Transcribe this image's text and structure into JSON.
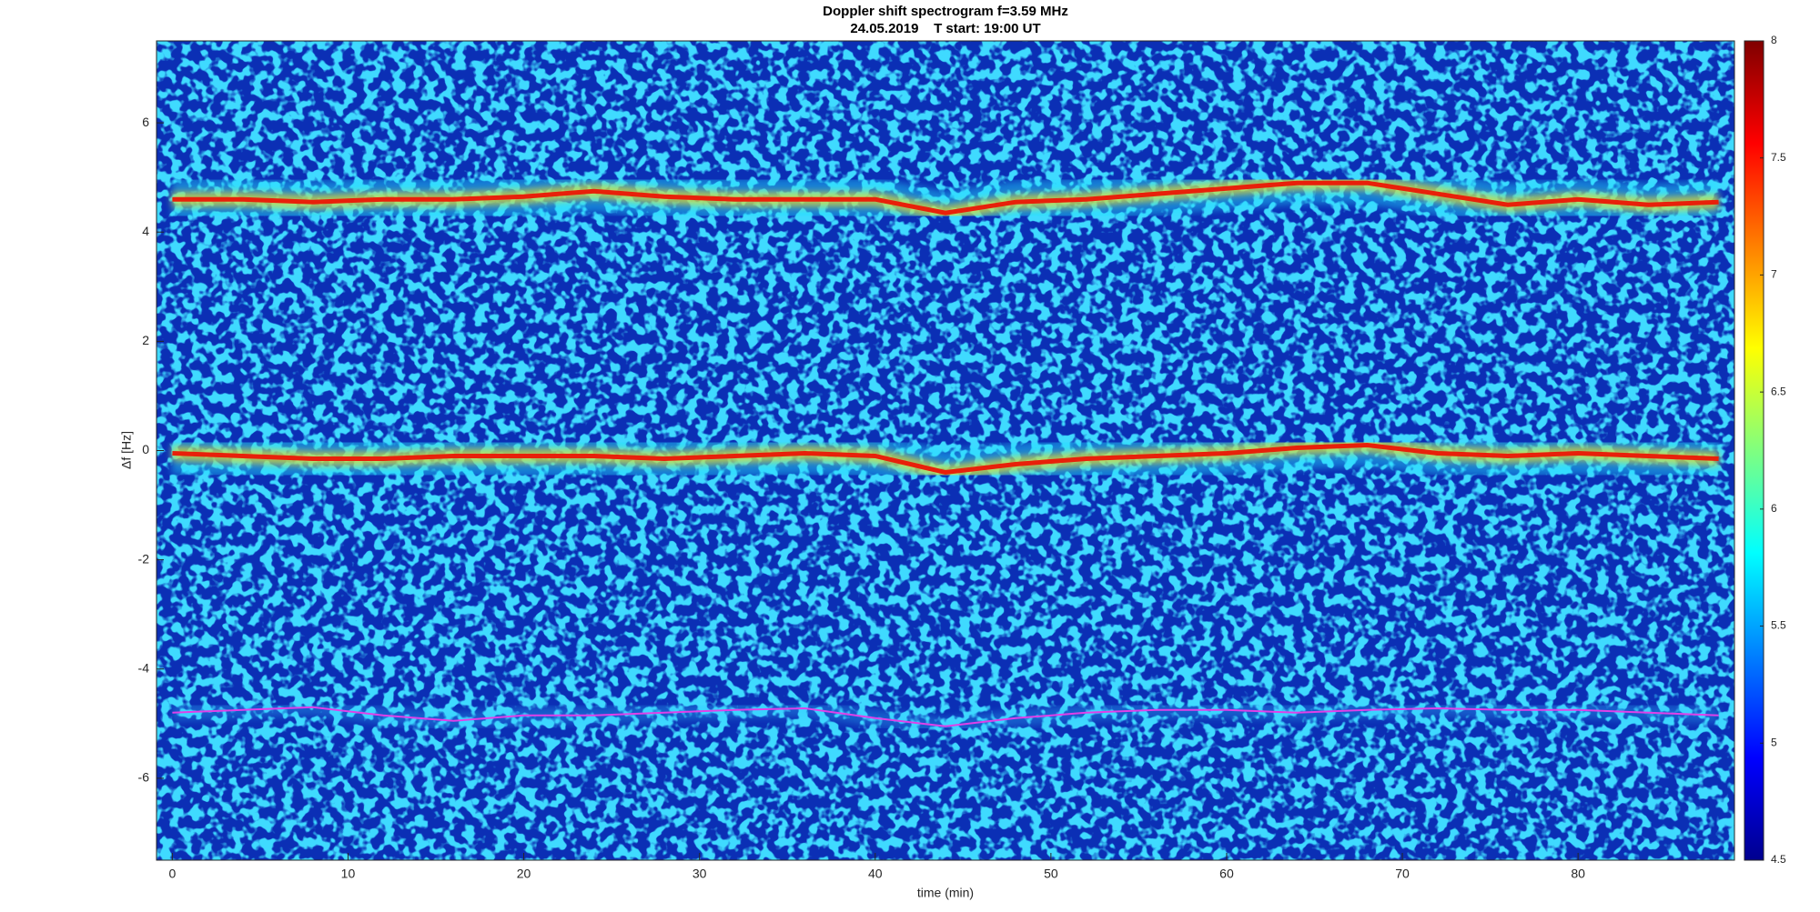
{
  "chart_data": {
    "type": "spectrogram",
    "title": "Doppler shift spectrogram f=3.59 MHz",
    "subtitle": "24.05.2019    T start: 19:00 UT",
    "xlabel": "time (min)",
    "ylabel": "Δf [Hz]",
    "xlim": [
      -0.9,
      88.9
    ],
    "xticks": [
      0,
      10,
      20,
      30,
      40,
      50,
      60,
      70,
      80
    ],
    "ylim": [
      -7.5,
      7.5
    ],
    "yticks": [
      -6,
      -4,
      -2,
      0,
      2,
      4,
      6
    ],
    "x": [
      0,
      4,
      8,
      12,
      16,
      20,
      24,
      28,
      32,
      36,
      40,
      44,
      48,
      52,
      56,
      60,
      64,
      68,
      72,
      76,
      80,
      84,
      88
    ],
    "series": [
      {
        "color": "#e8200a",
        "values": [
          4.6,
          4.6,
          4.55,
          4.6,
          4.6,
          4.65,
          4.75,
          4.65,
          4.6,
          4.6,
          4.6,
          4.35,
          4.55,
          4.6,
          4.7,
          4.8,
          4.9,
          4.9,
          4.7,
          4.5,
          4.6,
          4.5,
          4.55
        ]
      },
      {
        "color": "#e8200a",
        "values": [
          -0.05,
          -0.1,
          -0.15,
          -0.15,
          -0.1,
          -0.1,
          -0.1,
          -0.15,
          -0.1,
          -0.05,
          -0.1,
          -0.4,
          -0.25,
          -0.15,
          -0.1,
          -0.05,
          0.05,
          0.1,
          -0.05,
          -0.1,
          -0.05,
          -0.1,
          -0.15
        ]
      },
      {
        "color": "#e040e8",
        "values": [
          -4.8,
          -4.75,
          -4.7,
          -4.85,
          -4.95,
          -4.85,
          -4.85,
          -4.8,
          -4.75,
          -4.72,
          -4.9,
          -5.05,
          -4.9,
          -4.8,
          -4.75,
          -4.75,
          -4.8,
          -4.75,
          -4.72,
          -4.75,
          -4.75,
          -4.8,
          -4.85
        ]
      }
    ],
    "colorbar": {
      "lim": [
        4.5,
        8
      ],
      "ticks": [
        4.5,
        5,
        5.5,
        6,
        6.5,
        7,
        7.5,
        8
      ]
    }
  }
}
